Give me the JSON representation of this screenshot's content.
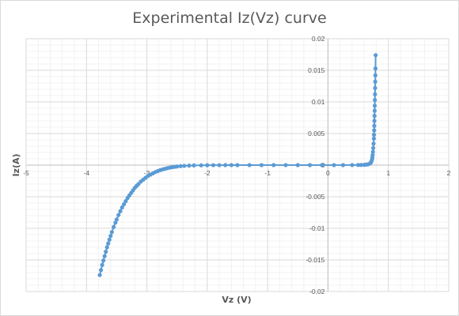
{
  "colors": {
    "series": "#5b9bd5",
    "major_grid": "#d9d9d9",
    "minor_grid": "#efefef",
    "text": "#595959"
  },
  "chart_data": {
    "type": "scatter",
    "title": "Experimental Iz(Vz) curve",
    "xlabel": "Vz (V)",
    "ylabel": "Iz(A)",
    "xlim": [
      -5,
      2
    ],
    "ylim": [
      -0.02,
      0.02
    ],
    "x_major_step": 1,
    "y_major_step": 0.005,
    "x_minor_divisions": 5,
    "y_minor_divisions": 5,
    "grid": true,
    "legend": "none",
    "markers": "circle",
    "line": "straight-with-markers",
    "x_tick_labels": [
      "-5",
      "-4",
      "-3",
      "-2",
      "-1",
      "0",
      "1",
      "2"
    ],
    "y_tick_labels": [
      "-0.02",
      "-0.015",
      "-0.01",
      "-0.005",
      "0",
      "0.005",
      "0.01",
      "0.015",
      "0.02"
    ],
    "series": [
      {
        "x": [
          -3.78,
          -3.76,
          -3.74,
          -3.72,
          -3.7,
          -3.68,
          -3.66,
          -3.64,
          -3.62,
          -3.6,
          -3.58,
          -3.55,
          -3.52,
          -3.5,
          -3.47,
          -3.44,
          -3.41,
          -3.38,
          -3.35,
          -3.32,
          -3.29,
          -3.26,
          -3.23,
          -3.2,
          -3.17,
          -3.14,
          -3.1,
          -3.06,
          -3.02,
          -2.98,
          -2.94,
          -2.9,
          -2.86,
          -2.82,
          -2.78,
          -2.74,
          -2.7,
          -2.66,
          -2.62,
          -2.58,
          -2.54,
          -2.5,
          -2.44,
          -2.38,
          -2.3,
          -2.22,
          -2.1,
          -2.0,
          -1.9,
          -1.8,
          -1.7,
          -1.6,
          -1.5,
          -1.3,
          -1.1,
          -0.9,
          -0.7,
          -0.5,
          -0.3,
          -0.1,
          0.1,
          0.25,
          0.4,
          0.5,
          0.55,
          0.6,
          0.63,
          0.66,
          0.68,
          0.7,
          0.71,
          0.72,
          0.73,
          0.735,
          0.74,
          0.745,
          0.75,
          0.755,
          0.76,
          0.762,
          0.765,
          0.767,
          0.769,
          0.771,
          0.773,
          0.775,
          0.777,
          0.779,
          0.781,
          0.783,
          0.785,
          0.787,
          0.79
        ],
        "y": [
          -0.0174,
          -0.0166,
          -0.0158,
          -0.0151,
          -0.0144,
          -0.0137,
          -0.013,
          -0.0124,
          -0.0118,
          -0.0112,
          -0.0106,
          -0.0098,
          -0.0091,
          -0.0086,
          -0.0079,
          -0.0073,
          -0.0067,
          -0.0062,
          -0.0057,
          -0.0052,
          -0.0048,
          -0.0044,
          -0.004,
          -0.0036,
          -0.0033,
          -0.003,
          -0.0026,
          -0.0023,
          -0.002,
          -0.0017,
          -0.0015,
          -0.0013,
          -0.0011,
          -0.00095,
          -0.0008,
          -0.00068,
          -0.00058,
          -0.00048,
          -0.0004,
          -0.00033,
          -0.00027,
          -0.00022,
          -0.00016,
          -0.00012,
          -8e-05,
          -5e-05,
          -3e-05,
          -2e-05,
          -1e-05,
          -1e-05,
          0,
          0,
          0,
          0,
          0,
          0,
          0,
          0,
          0,
          0,
          0,
          0,
          1e-05,
          2e-05,
          3e-05,
          5e-05,
          8e-05,
          0.00012,
          0.00018,
          0.0003,
          0.0004,
          0.0006,
          0.0009,
          0.0012,
          0.0016,
          0.0021,
          0.0027,
          0.0034,
          0.0042,
          0.0048,
          0.0055,
          0.0062,
          0.007,
          0.0078,
          0.0086,
          0.0094,
          0.0103,
          0.0112,
          0.0122,
          0.0132,
          0.0142,
          0.0153,
          0.0174
        ]
      }
    ]
  }
}
